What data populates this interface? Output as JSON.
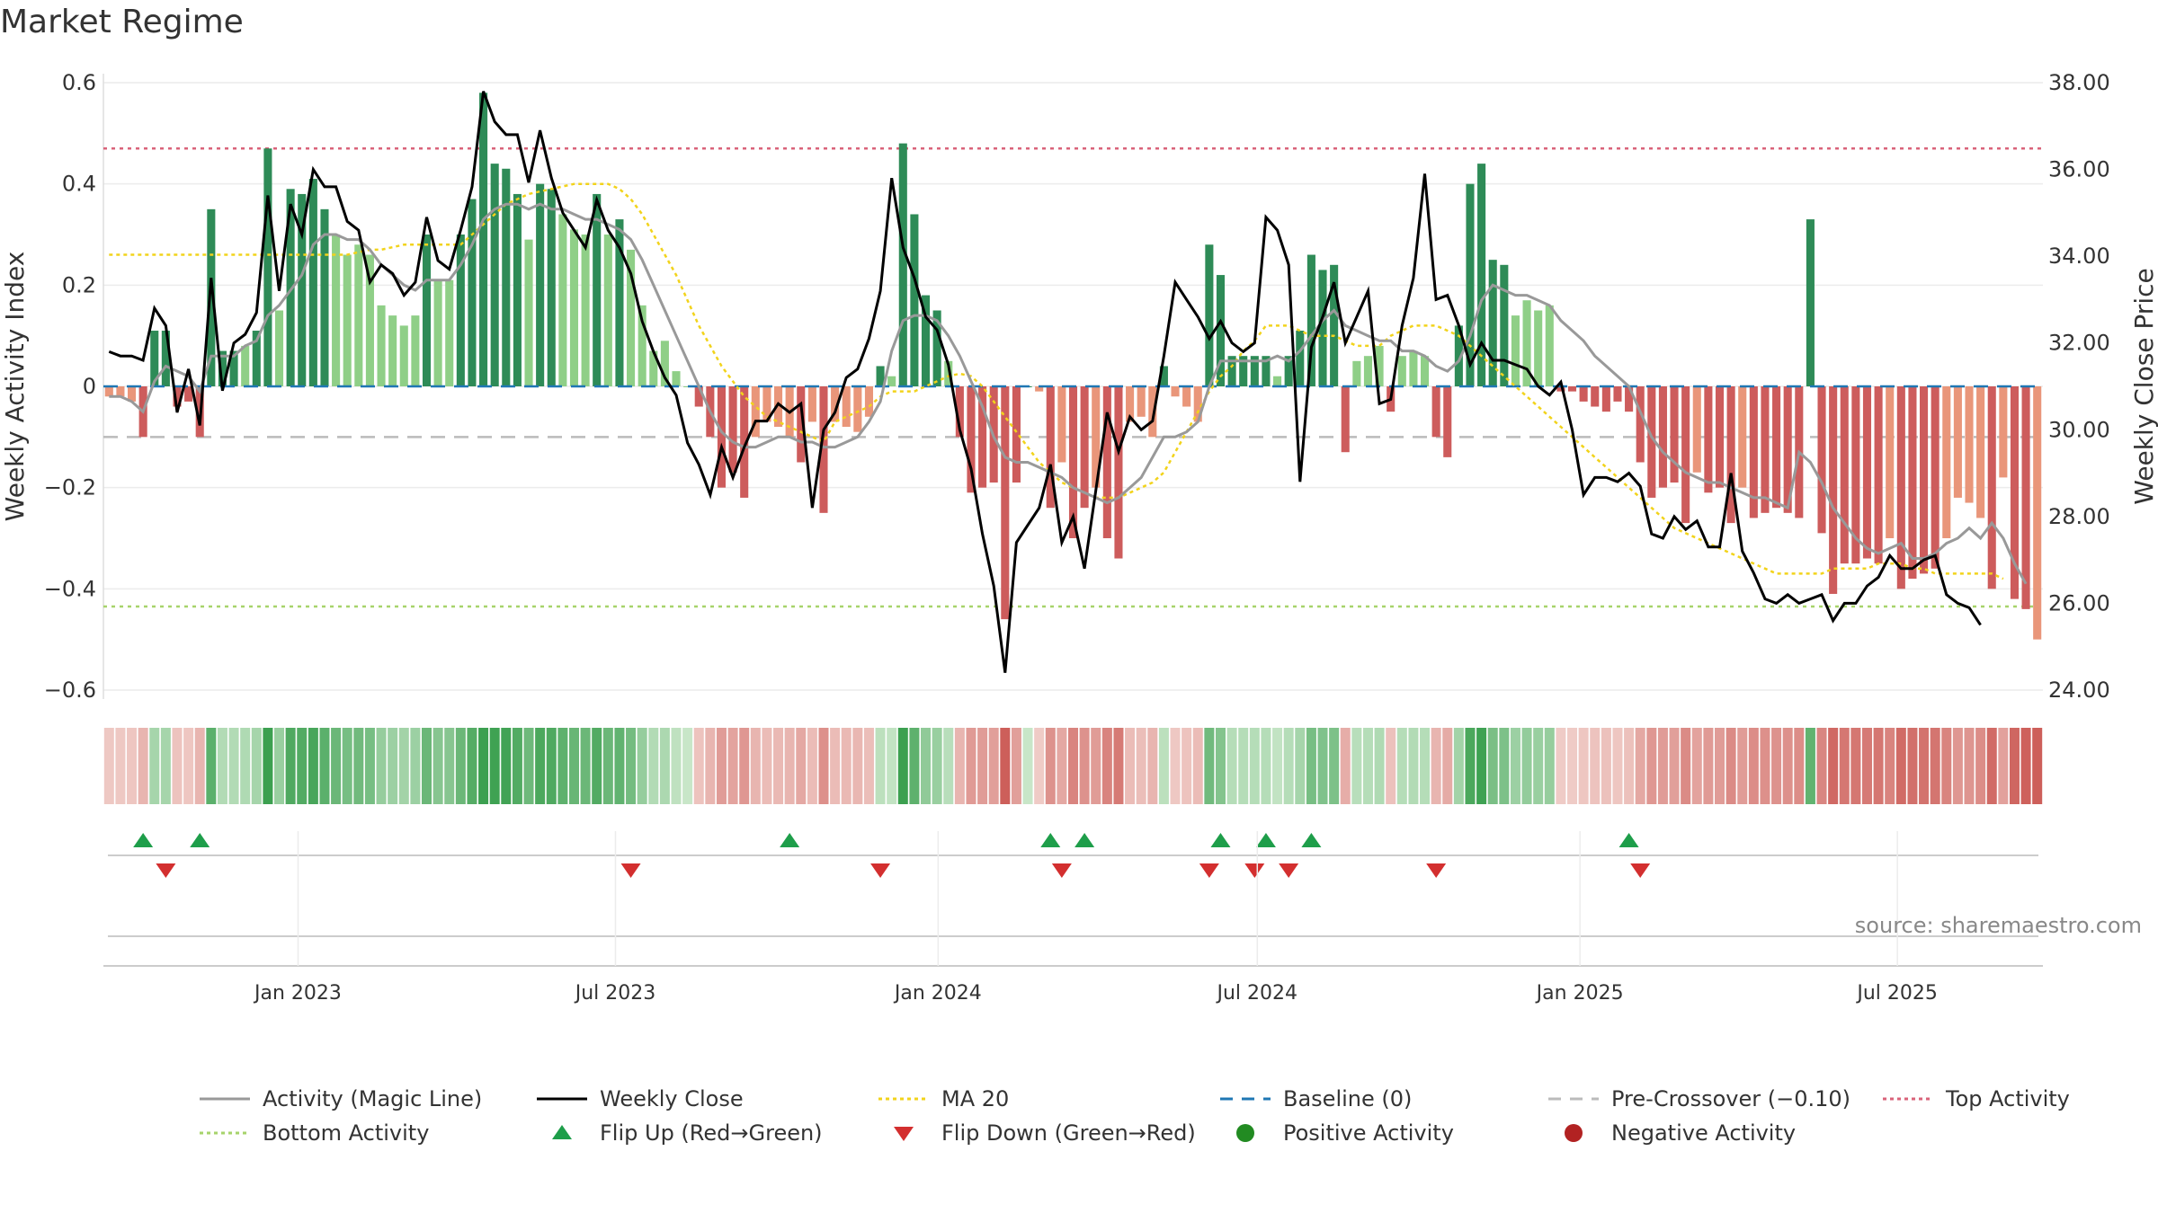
{
  "title": "Market Regime",
  "source": "source: sharemaestro.com",
  "colors": {
    "magic_line": "#999999",
    "close": "#000000",
    "ma20": "#f2d31b",
    "baseline": "#1f77b4",
    "pre_crossover": "#bbbbbb",
    "top": "#d9637a",
    "bottom": "#a7d36b",
    "flip_up": "#1e9e4a",
    "flip_down": "#d32f2f",
    "pos_strong": "#2e8b57",
    "pos_light": "#8fcf87",
    "neg_strong": "#cd5c5c",
    "neg_light": "#e9967a",
    "positive_dot": "#228b22",
    "negative_dot": "#b22222"
  },
  "chart_data": {
    "type": "bar",
    "ylabel": "Weekly Activity Index",
    "y2label": "Weekly Close Price",
    "ylim": [
      -0.6,
      0.6
    ],
    "y2lim": [
      24,
      38
    ],
    "yticks": [
      "0.6",
      "0.4",
      "0.2",
      "0",
      "−0.2",
      "−0.4",
      "−0.6"
    ],
    "y2ticks": [
      "38.00",
      "36.00",
      "34.00",
      "32.00",
      "30.00",
      "28.00",
      "26.00",
      "24.00"
    ],
    "xticks": [
      "Jan 2023",
      "Jul 2023",
      "Jan 2024",
      "Jul 2024",
      "Jan 2025",
      "Jul 2025"
    ],
    "xlim": [
      "2022-09-12",
      "2025-09-22"
    ],
    "grid": true,
    "reference_lines": {
      "top_activity": 0.47,
      "bottom_activity": -0.435,
      "baseline": 0,
      "pre_crossover": -0.1
    },
    "weekly_activity": [
      -0.02,
      -0.02,
      -0.03,
      -0.1,
      0.11,
      0.11,
      -0.04,
      -0.03,
      -0.1,
      0.35,
      0.07,
      0.07,
      0.08,
      0.11,
      0.47,
      0.15,
      0.39,
      0.38,
      0.41,
      0.35,
      0.3,
      0.26,
      0.28,
      0.26,
      0.16,
      0.14,
      0.12,
      0.14,
      0.3,
      0.21,
      0.21,
      0.3,
      0.37,
      0.58,
      0.44,
      0.43,
      0.38,
      0.29,
      0.4,
      0.39,
      0.34,
      0.31,
      0.3,
      0.38,
      0.3,
      0.33,
      0.27,
      0.16,
      0.07,
      0.09,
      0.03,
      0,
      -0.04,
      -0.1,
      -0.2,
      -0.17,
      -0.22,
      -0.1,
      -0.07,
      -0.08,
      -0.1,
      -0.15,
      -0.07,
      -0.25,
      -0.07,
      -0.08,
      -0.09,
      -0.06,
      0.04,
      0.02,
      0.48,
      0.34,
      0.18,
      0.15,
      0.05,
      -0.1,
      -0.21,
      -0.2,
      -0.19,
      -0.46,
      -0.19,
      0,
      -0.01,
      -0.24,
      -0.15,
      -0.3,
      -0.24,
      -0.2,
      -0.3,
      -0.34,
      -0.07,
      -0.06,
      -0.1,
      0.04,
      -0.02,
      -0.04,
      -0.07,
      0.28,
      0.22,
      0.06,
      0.06,
      0.06,
      0.06,
      0.02,
      0.06,
      0.11,
      0.26,
      0.23,
      0.24,
      -0.13,
      0.05,
      0.06,
      0.08,
      -0.05,
      0.06,
      0.07,
      0.06,
      -0.1,
      -0.14,
      0.12,
      0.4,
      0.44,
      0.25,
      0.24,
      0.14,
      0.17,
      0.15,
      0.16,
      -0.01,
      -0.01,
      -0.03,
      -0.04,
      -0.05,
      -0.03,
      -0.05,
      -0.15,
      -0.22,
      -0.2,
      -0.19,
      -0.27,
      -0.17,
      -0.21,
      -0.2,
      -0.27,
      -0.2,
      -0.26,
      -0.25,
      -0.24,
      -0.25,
      -0.26,
      0.33,
      -0.29,
      -0.41,
      -0.35,
      -0.35,
      -0.34,
      -0.35,
      -0.3,
      -0.4,
      -0.38,
      -0.37,
      -0.36,
      -0.3,
      -0.22,
      -0.23,
      -0.26,
      -0.4,
      -0.18,
      -0.42,
      -0.44,
      -0.5
    ],
    "weekly_close": [
      31.8,
      31.7,
      31.7,
      31.6,
      32.8,
      32.4,
      30.4,
      31.4,
      30.1,
      33.5,
      30.9,
      32.0,
      32.2,
      32.7,
      35.4,
      33.2,
      35.2,
      34.5,
      36.0,
      35.6,
      35.6,
      34.8,
      34.6,
      33.4,
      33.8,
      33.6,
      33.1,
      33.4,
      34.9,
      33.9,
      33.7,
      34.6,
      35.6,
      37.8,
      37.1,
      36.8,
      36.8,
      35.7,
      36.9,
      35.8,
      35.0,
      34.6,
      34.2,
      35.3,
      34.6,
      34.2,
      33.6,
      32.5,
      31.8,
      31.2,
      30.8,
      29.7,
      29.2,
      28.5,
      29.6,
      28.9,
      29.6,
      30.2,
      30.2,
      30.6,
      30.4,
      30.6,
      28.2,
      30.0,
      30.4,
      31.2,
      31.4,
      32.1,
      33.2,
      35.8,
      34.2,
      33.5,
      32.6,
      32.3,
      31.5,
      30.0,
      29.1,
      27.6,
      26.4,
      24.4,
      27.4,
      27.8,
      28.2,
      29.2,
      27.4,
      28.0,
      26.8,
      28.6,
      30.4,
      29.5,
      30.3,
      30.0,
      30.2,
      31.7,
      33.4,
      33.0,
      32.6,
      32.1,
      32.5,
      32.0,
      31.8,
      32.0,
      34.9,
      34.6,
      33.8,
      28.8,
      31.9,
      32.6,
      33.4,
      32.0,
      32.6,
      33.2,
      30.6,
      30.7,
      32.4,
      33.5,
      35.9,
      33.0,
      33.1,
      32.4,
      31.5,
      32.0,
      31.6,
      31.6,
      31.5,
      31.4,
      31.0,
      30.8,
      31.1,
      30.0,
      28.5,
      28.9,
      28.9,
      28.8,
      29.0,
      28.7,
      27.6,
      27.5,
      28.0,
      27.7,
      27.9,
      27.3,
      27.3,
      29.0,
      27.2,
      26.7,
      26.1,
      26.0,
      26.2,
      26.0,
      26.1,
      26.2,
      25.6,
      26.0,
      26.0,
      26.4,
      26.6,
      27.1,
      26.8,
      26.8,
      27.0,
      27.1,
      26.2,
      26.0,
      25.9,
      25.5
    ],
    "magic_line": [
      -0.02,
      -0.02,
      -0.03,
      -0.05,
      0.01,
      0.04,
      0.03,
      0.02,
      -0.01,
      0.06,
      0.06,
      0.06,
      0.08,
      0.09,
      0.14,
      0.16,
      0.19,
      0.22,
      0.28,
      0.3,
      0.3,
      0.29,
      0.29,
      0.27,
      0.24,
      0.22,
      0.2,
      0.19,
      0.21,
      0.21,
      0.21,
      0.24,
      0.28,
      0.33,
      0.35,
      0.36,
      0.36,
      0.35,
      0.36,
      0.35,
      0.35,
      0.34,
      0.33,
      0.33,
      0.32,
      0.31,
      0.29,
      0.25,
      0.2,
      0.15,
      0.1,
      0.05,
      0.0,
      -0.05,
      -0.09,
      -0.11,
      -0.12,
      -0.12,
      -0.11,
      -0.1,
      -0.1,
      -0.11,
      -0.11,
      -0.12,
      -0.12,
      -0.11,
      -0.1,
      -0.07,
      -0.03,
      0.07,
      0.13,
      0.14,
      0.14,
      0.13,
      0.1,
      0.06,
      0.01,
      -0.04,
      -0.1,
      -0.14,
      -0.15,
      -0.15,
      -0.16,
      -0.17,
      -0.18,
      -0.2,
      -0.21,
      -0.22,
      -0.23,
      -0.22,
      -0.2,
      -0.18,
      -0.14,
      -0.1,
      -0.1,
      -0.09,
      -0.07,
      0.0,
      0.05,
      0.05,
      0.05,
      0.05,
      0.05,
      0.06,
      0.05,
      0.07,
      0.1,
      0.13,
      0.15,
      0.12,
      0.11,
      0.1,
      0.09,
      0.09,
      0.07,
      0.07,
      0.06,
      0.04,
      0.03,
      0.05,
      0.1,
      0.17,
      0.2,
      0.19,
      0.18,
      0.18,
      0.17,
      0.16,
      0.13,
      0.11,
      0.09,
      0.06,
      0.04,
      0.02,
      0.0,
      -0.05,
      -0.1,
      -0.13,
      -0.15,
      -0.17,
      -0.18,
      -0.19,
      -0.19,
      -0.2,
      -0.21,
      -0.22,
      -0.22,
      -0.23,
      -0.24,
      -0.13,
      -0.15,
      -0.19,
      -0.24,
      -0.27,
      -0.3,
      -0.32,
      -0.33,
      -0.32,
      -0.31,
      -0.34,
      -0.34,
      -0.33,
      -0.31,
      -0.3,
      -0.28,
      -0.3,
      -0.27,
      -0.3,
      -0.35,
      -0.39
    ],
    "ma20": [
      0.26,
      0.26,
      0.26,
      0.26,
      0.26,
      0.26,
      0.26,
      0.26,
      0.26,
      0.26,
      0.26,
      0.26,
      0.26,
      0.26,
      0.26,
      0.26,
      0.26,
      0.26,
      0.26,
      0.26,
      0.26,
      0.26,
      0.265,
      0.27,
      0.27,
      0.275,
      0.28,
      0.28,
      0.28,
      0.28,
      0.28,
      0.28,
      0.3,
      0.32,
      0.34,
      0.36,
      0.37,
      0.38,
      0.385,
      0.39,
      0.395,
      0.4,
      0.4,
      0.4,
      0.4,
      0.39,
      0.37,
      0.34,
      0.3,
      0.26,
      0.22,
      0.17,
      0.12,
      0.08,
      0.04,
      0.01,
      -0.02,
      -0.04,
      -0.06,
      -0.07,
      -0.08,
      -0.09,
      -0.1,
      -0.11,
      -0.07,
      -0.06,
      -0.05,
      -0.04,
      -0.02,
      -0.01,
      -0.01,
      -0.01,
      0.0,
      0.01,
      0.02,
      0.025,
      0.02,
      0.0,
      -0.03,
      -0.06,
      -0.09,
      -0.12,
      -0.15,
      -0.17,
      -0.19,
      -0.2,
      -0.21,
      -0.22,
      -0.22,
      -0.22,
      -0.21,
      -0.2,
      -0.19,
      -0.17,
      -0.13,
      -0.09,
      -0.05,
      -0.01,
      0.02,
      0.04,
      0.07,
      0.09,
      0.12,
      0.12,
      0.12,
      0.11,
      0.1,
      0.1,
      0.1,
      0.09,
      0.08,
      0.08,
      0.08,
      0.1,
      0.11,
      0.12,
      0.12,
      0.12,
      0.11,
      0.1,
      0.08,
      0.06,
      0.04,
      0.02,
      0.0,
      -0.02,
      -0.04,
      -0.06,
      -0.08,
      -0.1,
      -0.12,
      -0.14,
      -0.16,
      -0.18,
      -0.2,
      -0.22,
      -0.24,
      -0.26,
      -0.28,
      -0.29,
      -0.3,
      -0.31,
      -0.32,
      -0.33,
      -0.34,
      -0.35,
      -0.36,
      -0.37,
      -0.37,
      -0.37,
      -0.37,
      -0.37,
      -0.36,
      -0.36,
      -0.36,
      -0.36,
      -0.35,
      -0.35,
      -0.35,
      -0.36,
      -0.36,
      -0.37,
      -0.37,
      -0.37,
      -0.37,
      -0.37,
      -0.37,
      -0.38
    ],
    "regime_strip": "color-coded by weekly activity",
    "flip_up_weeks": [
      3,
      8,
      60,
      83,
      86,
      98,
      102,
      106,
      134
    ],
    "flip_down_weeks": [
      5,
      46,
      68,
      84,
      97,
      101,
      104,
      117,
      135
    ],
    "legend": {
      "placement": "bottom",
      "items": [
        {
          "label": "Activity (Magic Line)",
          "kind": "line",
          "color": "#999999"
        },
        {
          "label": "Weekly Close",
          "kind": "line",
          "color": "#000000"
        },
        {
          "label": "MA 20",
          "kind": "dotted",
          "color": "#f2d31b"
        },
        {
          "label": "Baseline (0)",
          "kind": "dashed",
          "color": "#1f77b4"
        },
        {
          "label": "Pre-Crossover (−0.10)",
          "kind": "dashed",
          "color": "#bbbbbb"
        },
        {
          "label": "Top Activity",
          "kind": "dotted",
          "color": "#d9637a"
        },
        {
          "label": "Bottom Activity",
          "kind": "dotted",
          "color": "#a7d36b"
        },
        {
          "label": "Flip Up (Red→Green)",
          "kind": "triangle-up",
          "color": "#1e9e4a"
        },
        {
          "label": "Flip Down (Green→Red)",
          "kind": "triangle-down",
          "color": "#d32f2f"
        },
        {
          "label": "Positive Activity",
          "kind": "dot",
          "color": "#228b22"
        },
        {
          "label": "Negative Activity",
          "kind": "dot",
          "color": "#b22222"
        }
      ]
    }
  }
}
